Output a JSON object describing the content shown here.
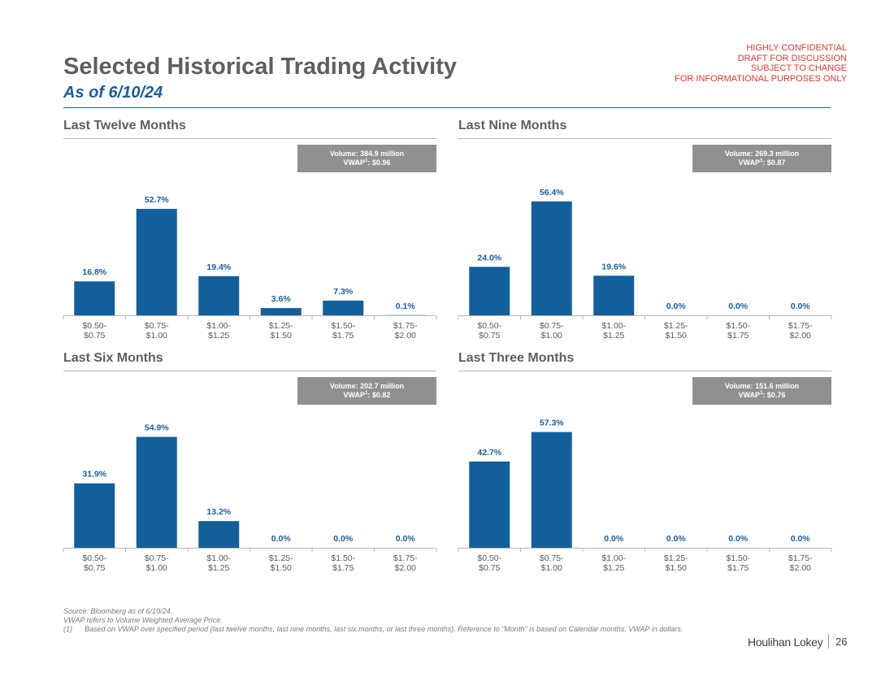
{
  "header": {
    "title": "Selected Historical Trading Activity",
    "subtitle": "As of 6/10/24",
    "confidential": [
      "HIGHLY CONFIDENTIAL",
      "DRAFT FOR DISCUSSION",
      "SUBJECT TO CHANGE",
      "FOR INFORMATIONAL PURPOSES ONLY"
    ]
  },
  "colors": {
    "bar": "#135f9c",
    "label": "#1b5d9c",
    "title": "#5f5f5f",
    "confidential": "#e03a2e",
    "box": "#8f9092"
  },
  "chart_data": [
    {
      "type": "bar",
      "title": "Last Twelve Months",
      "volume_label": "Volume: 384.9 million",
      "vwap_prefix": "VWAP",
      "vwap_sup": "1",
      "vwap_value": ": $0.96",
      "categories": [
        [
          "$0.50-",
          "$0.75"
        ],
        [
          "$0.75-",
          "$1.00"
        ],
        [
          "$1.00-",
          "$1.25"
        ],
        [
          "$1.25-",
          "$1.50"
        ],
        [
          "$1.50-",
          "$1.75"
        ],
        [
          "$1.75-",
          "$2.00"
        ]
      ],
      "values": [
        16.8,
        52.7,
        19.4,
        3.6,
        7.3,
        0.1
      ],
      "value_labels": [
        "16.8%",
        "52.7%",
        "19.4%",
        "3.6%",
        "7.3%",
        "0.1%"
      ],
      "ylim": [
        0,
        70
      ]
    },
    {
      "type": "bar",
      "title": "Last Nine Months",
      "volume_label": "Volume: 269.3 million",
      "vwap_prefix": "VWAP",
      "vwap_sup": "1",
      "vwap_value": ": $0.87",
      "categories": [
        [
          "$0.50-",
          "$0.75"
        ],
        [
          "$0.75-",
          "$1.00"
        ],
        [
          "$1.00-",
          "$1.25"
        ],
        [
          "$1.25-",
          "$1.50"
        ],
        [
          "$1.50-",
          "$1.75"
        ],
        [
          "$1.75-",
          "$2.00"
        ]
      ],
      "values": [
        24.0,
        56.4,
        19.6,
        0.0,
        0.0,
        0.0
      ],
      "value_labels": [
        "24.0%",
        "56.4%",
        "19.6%",
        "0.0%",
        "0.0%",
        "0.0%"
      ],
      "ylim": [
        0,
        70
      ]
    },
    {
      "type": "bar",
      "title": "Last Six Months",
      "volume_label": "Volume: 202.7 million",
      "vwap_prefix": "VWAP",
      "vwap_sup": "1",
      "vwap_value": ": $0.82",
      "categories": [
        [
          "$0.50-",
          "$0.75"
        ],
        [
          "$0.75-",
          "$1.00"
        ],
        [
          "$1.00-",
          "$1.25"
        ],
        [
          "$1.25-",
          "$1.50"
        ],
        [
          "$1.50-",
          "$1.75"
        ],
        [
          "$1.75-",
          "$2.00"
        ]
      ],
      "values": [
        31.9,
        54.9,
        13.2,
        0.0,
        0.0,
        0.0
      ],
      "value_labels": [
        "31.9%",
        "54.9%",
        "13.2%",
        "0.0%",
        "0.0%",
        "0.0%"
      ],
      "ylim": [
        0,
        70
      ]
    },
    {
      "type": "bar",
      "title": "Last Three Months",
      "volume_label": "Volume: 151.6 million",
      "vwap_prefix": "VWAP",
      "vwap_sup": "1",
      "vwap_value": ": $0.76",
      "categories": [
        [
          "$0.50-",
          "$0.75"
        ],
        [
          "$0.75-",
          "$1.00"
        ],
        [
          "$1.00-",
          "$1.25"
        ],
        [
          "$1.25-",
          "$1.50"
        ],
        [
          "$1.50-",
          "$1.75"
        ],
        [
          "$1.75-",
          "$2.00"
        ]
      ],
      "values": [
        42.7,
        57.3,
        0.0,
        0.0,
        0.0,
        0.0
      ],
      "value_labels": [
        "42.7%",
        "57.3%",
        "0.0%",
        "0.0%",
        "0.0%",
        "0.0%"
      ],
      "ylim": [
        0,
        70
      ]
    }
  ],
  "footnotes": {
    "source": "Source: Bloomberg as of 6/10/24.",
    "vwap_def": "VWAP refers to Volume Weighted Average Price.",
    "note_num": "(1)",
    "note_text": "Based on VWAP over specified period (last twelve months, last nine months, last six months, or last three months). Reference to \"Month\" is based on Calendar months. VWAP in dollars."
  },
  "footer": {
    "brand": "Houlihan Lokey",
    "page_number": "26"
  }
}
